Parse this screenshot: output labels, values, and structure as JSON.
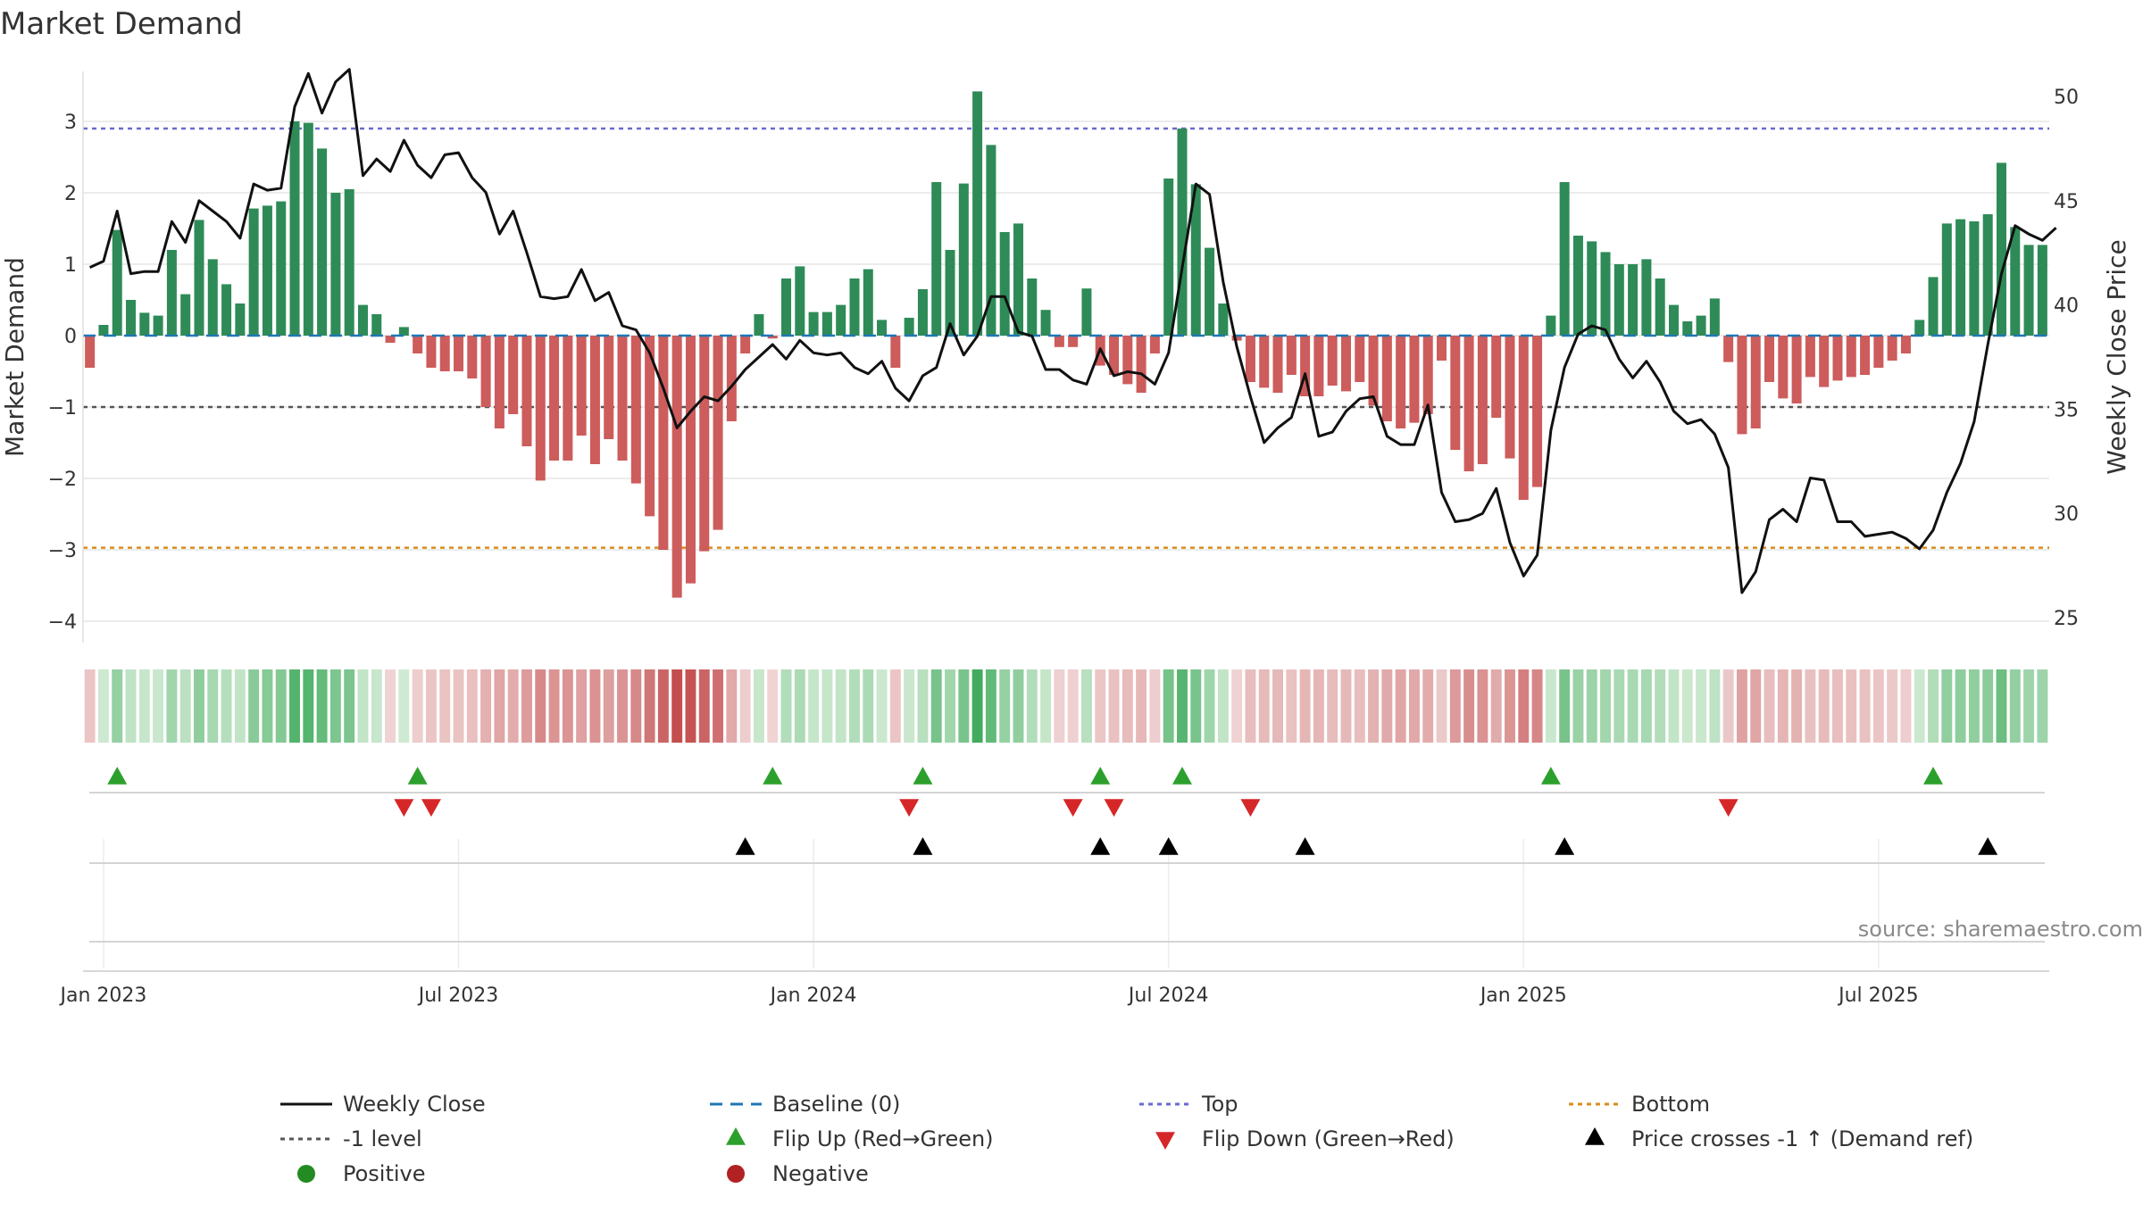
{
  "chart_data": {
    "type": "bar",
    "title": "Market Demand",
    "ylabel": "Market Demand",
    "y2label": "Weekly Close Price",
    "ylim": [
      -4.3,
      3.7
    ],
    "y2lim": [
      23.8,
      51.2
    ],
    "yticks": [
      3,
      2,
      1,
      0,
      -1,
      -2,
      -3,
      -4
    ],
    "ytick_labels": [
      "3",
      "2",
      "1",
      "0",
      "−1",
      "−2",
      "−3",
      "−4"
    ],
    "y2ticks": [
      50,
      45,
      40,
      35,
      30,
      25
    ],
    "xticks": [
      {
        "week": 1,
        "label": "Jan 2023"
      },
      {
        "week": 27,
        "label": "Jul 2023"
      },
      {
        "week": 53,
        "label": "Jan 2024"
      },
      {
        "week": 79,
        "label": "Jul 2024"
      },
      {
        "week": 105,
        "label": "Jan 2025"
      },
      {
        "week": 131,
        "label": "Jul 2025"
      }
    ],
    "reference_lines": {
      "baseline": 0,
      "top": 2.9,
      "minus_one": -1,
      "bottom": -2.97
    },
    "demand": [
      -0.45,
      0.15,
      1.48,
      0.5,
      0.32,
      0.28,
      1.2,
      0.58,
      1.62,
      1.07,
      0.72,
      0.45,
      1.78,
      1.82,
      1.88,
      3.0,
      2.98,
      2.62,
      2.0,
      2.05,
      0.43,
      0.3,
      -0.1,
      0.12,
      -0.25,
      -0.45,
      -0.5,
      -0.5,
      -0.6,
      -1.0,
      -1.3,
      -1.1,
      -1.55,
      -2.03,
      -1.75,
      -1.75,
      -1.4,
      -1.8,
      -1.45,
      -1.75,
      -2.07,
      -2.53,
      -3.0,
      -3.67,
      -3.47,
      -3.02,
      -2.72,
      -1.2,
      -0.25,
      0.3,
      -0.04,
      0.8,
      0.97,
      0.33,
      0.33,
      0.43,
      0.8,
      0.93,
      0.22,
      -0.45,
      0.25,
      0.65,
      2.15,
      1.2,
      2.13,
      3.42,
      2.67,
      1.45,
      1.57,
      0.8,
      0.36,
      -0.16,
      -0.16,
      0.66,
      -0.42,
      -0.55,
      -0.68,
      -0.8,
      -0.25,
      2.2,
      2.9,
      2.12,
      1.23,
      0.45,
      -0.07,
      -0.65,
      -0.73,
      -0.8,
      -0.55,
      -0.85,
      -0.85,
      -0.7,
      -0.78,
      -0.65,
      -0.98,
      -1.2,
      -1.3,
      -1.22,
      -1.1,
      -0.35,
      -1.6,
      -1.9,
      -1.8,
      -1.15,
      -1.72,
      -2.3,
      -2.12,
      0.28,
      2.15,
      1.4,
      1.32,
      1.17,
      1.0,
      1.0,
      1.07,
      0.8,
      0.43,
      0.2,
      0.28,
      0.52,
      -0.37,
      -1.38,
      -1.3,
      -0.65,
      -0.88,
      -0.95,
      -0.58,
      -0.72,
      -0.63,
      -0.58,
      -0.55,
      -0.45,
      -0.35,
      -0.25,
      0.22,
      0.82,
      1.57,
      1.63,
      1.6,
      1.7,
      2.42,
      1.52,
      1.27,
      1.27
    ],
    "weekly_close": [
      41.8,
      42.1,
      44.5,
      41.5,
      41.6,
      41.6,
      44.0,
      43.0,
      45.0,
      44.5,
      44.0,
      43.2,
      45.8,
      45.5,
      45.6,
      49.5,
      51.1,
      49.2,
      50.7,
      51.3,
      46.2,
      47.0,
      46.4,
      47.9,
      46.7,
      46.1,
      47.2,
      47.3,
      46.1,
      45.4,
      43.4,
      44.5,
      42.5,
      40.4,
      40.3,
      40.4,
      41.7,
      40.2,
      40.6,
      39.0,
      38.8,
      37.7,
      36.0,
      34.1,
      34.9,
      35.6,
      35.4,
      36.1,
      36.9,
      37.5,
      38.1,
      37.4,
      38.3,
      37.7,
      37.6,
      37.7,
      37.0,
      36.7,
      37.3,
      36.0,
      35.4,
      36.6,
      37.0,
      39.1,
      37.6,
      38.5,
      40.4,
      40.4,
      38.7,
      38.5,
      36.9,
      36.9,
      36.4,
      36.2,
      37.9,
      36.6,
      36.8,
      36.7,
      36.2,
      37.7,
      41.8,
      45.8,
      45.3,
      41.1,
      38.0,
      35.6,
      33.4,
      34.1,
      34.6,
      36.7,
      33.7,
      33.9,
      34.9,
      35.5,
      35.6,
      33.7,
      33.3,
      33.3,
      35.2,
      31.0,
      29.6,
      29.7,
      30.0,
      31.2,
      28.6,
      27.0,
      28.0,
      34.0,
      37.0,
      38.6,
      39.0,
      38.8,
      37.4,
      36.5,
      37.3,
      36.3,
      34.9,
      34.3,
      34.5,
      33.8,
      32.2,
      26.2,
      27.2,
      29.7,
      30.2,
      29.6,
      31.7,
      31.6,
      29.6,
      29.6,
      28.9,
      29.0,
      29.1,
      28.8,
      28.3,
      29.2,
      31.0,
      32.4,
      34.4,
      38.1,
      41.5,
      43.8,
      43.4,
      43.1,
      43.7
    ],
    "flip_up_weeks": [
      2,
      24,
      50,
      61,
      74,
      80,
      107,
      135
    ],
    "flip_down_weeks": [
      23,
      25,
      60,
      72,
      75,
      85,
      120
    ],
    "price_cross_weeks": [
      48,
      61,
      74,
      79,
      89,
      108,
      139
    ],
    "legend_position": "bottom"
  },
  "colors": {
    "positive_bar": "#2e8b57",
    "negative_bar": "#cd5c5c",
    "price_line": "#111111",
    "baseline": "#1f77b4",
    "top": "#6a6acd",
    "minus_one": "#555555",
    "bottom": "#d98c1a",
    "flip_up": "#2ca02c",
    "flip_down": "#d62728",
    "price_cross": "#000000",
    "positive_dot": "#228b22",
    "negative_dot": "#b22222"
  },
  "source": "source: sharemaestro.com",
  "legend": {
    "weekly_close": "Weekly Close",
    "baseline": "Baseline (0)",
    "top": "Top",
    "bottom": "Bottom",
    "minus_one": "-1 level",
    "flip_up": "Flip Up (Red→Green)",
    "flip_down": "Flip Down (Green→Red)",
    "price_cross": "Price crosses -1 ↑ (Demand ref)",
    "positive": "Positive",
    "negative": "Negative"
  }
}
